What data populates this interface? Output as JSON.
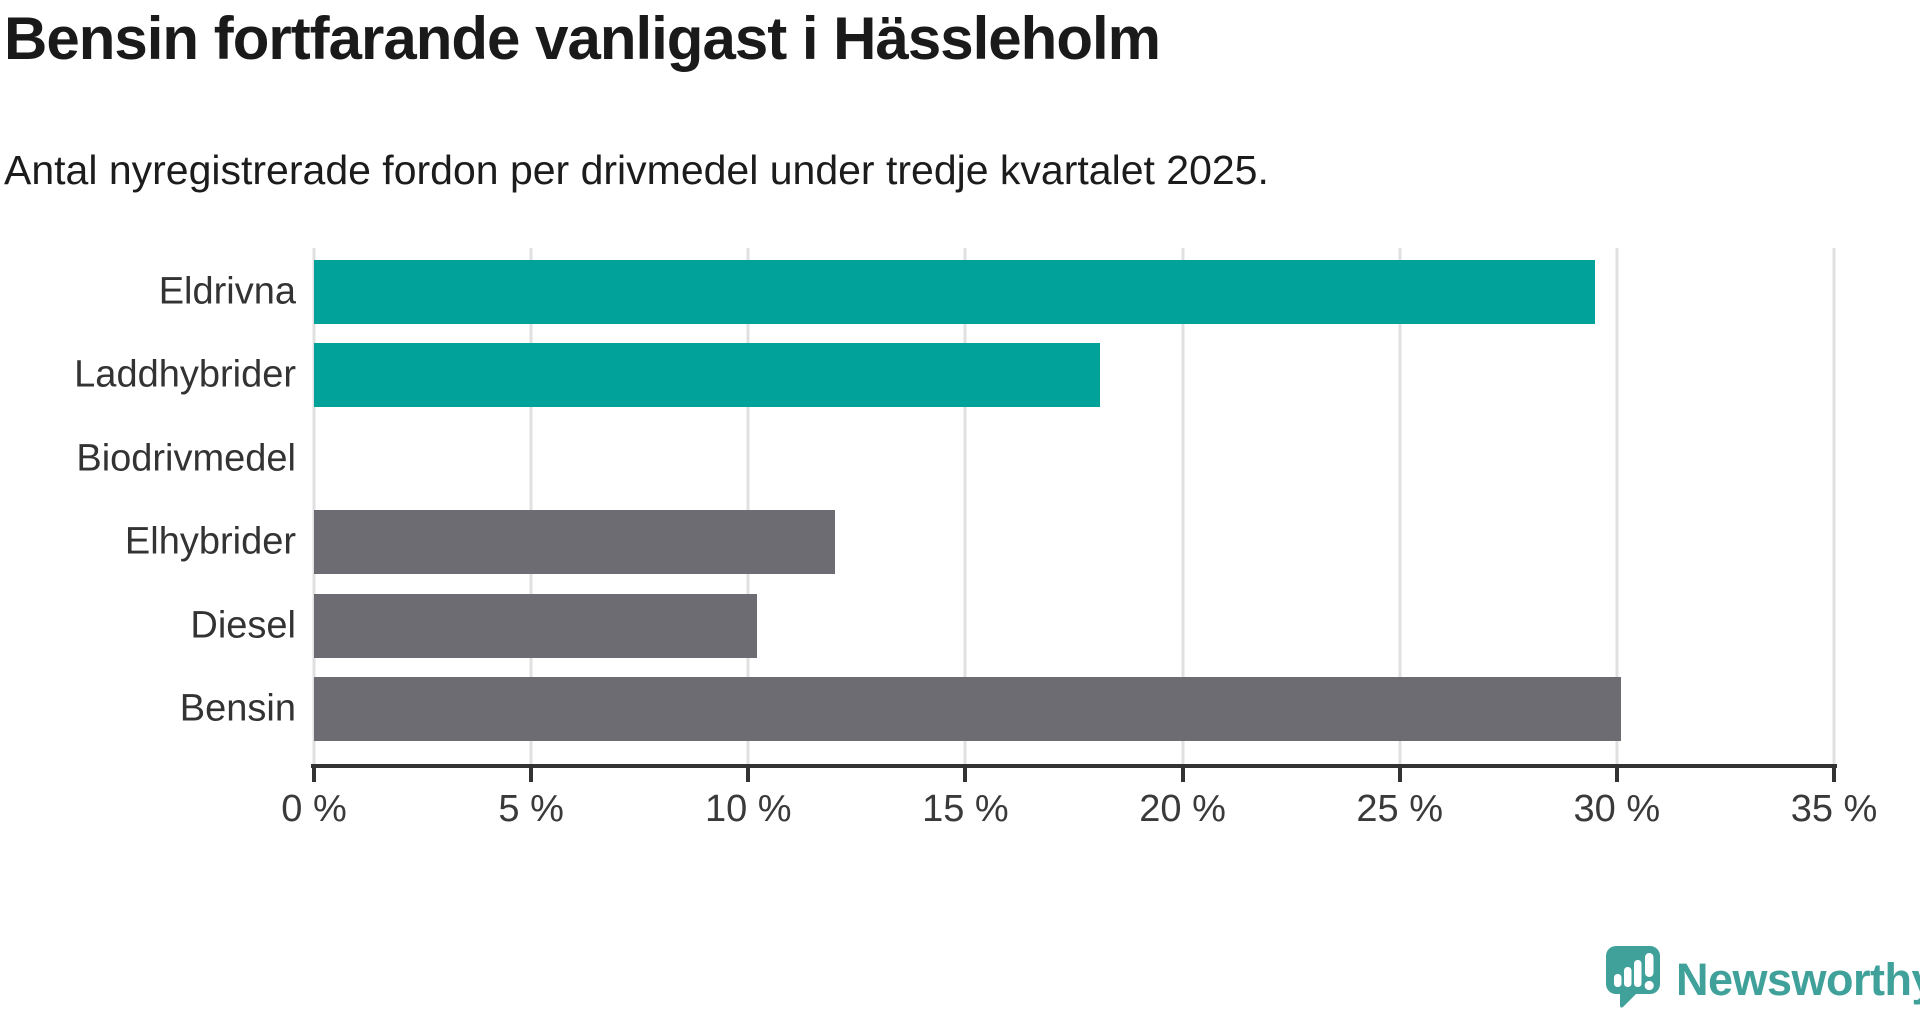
{
  "header": {
    "title": "Bensin fortfarande vanligast i Hässleholm",
    "subtitle": "Antal nyregistrerade fordon per drivmedel under tredje kvartalet 2025."
  },
  "chart_data": {
    "type": "bar",
    "orientation": "horizontal",
    "title": "Bensin fortfarande vanligast i Hässleholm",
    "subtitle": "Antal nyregistrerade fordon per drivmedel under tredje kvartalet 2025.",
    "categories": [
      "Eldrivna",
      "Laddhybrider",
      "Biodrivmedel",
      "Elhybrider",
      "Diesel",
      "Bensin"
    ],
    "values": [
      29.5,
      18.1,
      0,
      12.0,
      10.2,
      30.1
    ],
    "unit": "%",
    "xlabel": "",
    "ylabel": "",
    "xlim": [
      0,
      35
    ],
    "xtick_values": [
      0,
      5,
      10,
      15,
      20,
      25,
      30,
      35
    ],
    "xtick_labels": [
      "0 %",
      "5 %",
      "10 %",
      "15 %",
      "20 %",
      "25 %",
      "30 %",
      "35 %"
    ],
    "grid": true,
    "legend": false,
    "highlight_color": "#00a29a",
    "default_color": "#6c6c72",
    "bar_colors": [
      "#00a29a",
      "#00a29a",
      "#6c6c72",
      "#6c6c72",
      "#6c6c72",
      "#6c6c72"
    ]
  },
  "branding": {
    "logo_text": "Newsworthy",
    "logo_color": "#3fa19a",
    "logo_icon": "speech-bubble-bar-chart-icon"
  }
}
